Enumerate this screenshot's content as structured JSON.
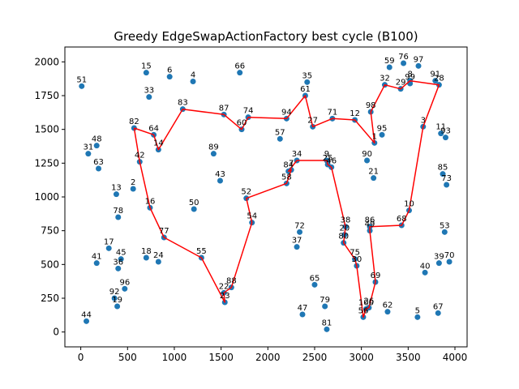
{
  "chart_data": {
    "type": "scatter",
    "title": "Greedy EdgeSwapActionFactory best cycle (B100)",
    "xlabel": "",
    "ylabel": "",
    "xlim": [
      -170,
      4130
    ],
    "ylim": [
      -110,
      2110
    ],
    "xticks": [
      0,
      500,
      1000,
      1500,
      2000,
      2500,
      3000,
      3500,
      4000
    ],
    "yticks": [
      0,
      250,
      500,
      750,
      1000,
      1250,
      1500,
      1750,
      2000
    ],
    "grid": false,
    "colors": {
      "points": "#1f77b4",
      "tour": "#ff0000"
    },
    "points": [
      {
        "id": "2",
        "x": 560,
        "y": 1060
      },
      {
        "id": "3",
        "x": 3660,
        "y": 1520
      },
      {
        "id": "4",
        "x": 1200,
        "y": 1855
      },
      {
        "id": "5",
        "x": 3600,
        "y": 110
      },
      {
        "id": "6",
        "x": 950,
        "y": 1890
      },
      {
        "id": "7",
        "x": 2250,
        "y": 1200
      },
      {
        "id": "8",
        "x": 3520,
        "y": 1860
      },
      {
        "id": "9",
        "x": 2630,
        "y": 1270
      },
      {
        "id": "10",
        "x": 3510,
        "y": 900
      },
      {
        "id": "11",
        "x": 3850,
        "y": 1470
      },
      {
        "id": "12",
        "x": 2930,
        "y": 1570
      },
      {
        "id": "13",
        "x": 380,
        "y": 1020
      },
      {
        "id": "14",
        "x": 830,
        "y": 1350
      },
      {
        "id": "15",
        "x": 700,
        "y": 1920
      },
      {
        "id": "16",
        "x": 740,
        "y": 920
      },
      {
        "id": "17",
        "x": 300,
        "y": 620
      },
      {
        "id": "18",
        "x": 700,
        "y": 550
      },
      {
        "id": "19",
        "x": 390,
        "y": 190
      },
      {
        "id": "20",
        "x": 2820,
        "y": 720
      },
      {
        "id": "21",
        "x": 3130,
        "y": 1140
      },
      {
        "id": "22",
        "x": 1530,
        "y": 290
      },
      {
        "id": "23",
        "x": 1540,
        "y": 220
      },
      {
        "id": "24",
        "x": 830,
        "y": 520
      },
      {
        "id": "25",
        "x": 2640,
        "y": 1240
      },
      {
        "id": "26",
        "x": 3080,
        "y": 180
      },
      {
        "id": "27",
        "x": 2480,
        "y": 1520
      },
      {
        "id": "28",
        "x": 3830,
        "y": 1830
      },
      {
        "id": "29",
        "x": 3420,
        "y": 1800
      },
      {
        "id": "30",
        "x": 2950,
        "y": 490
      },
      {
        "id": "31",
        "x": 80,
        "y": 1320
      },
      {
        "id": "32",
        "x": 3250,
        "y": 1830
      },
      {
        "id": "33",
        "x": 730,
        "y": 1740
      },
      {
        "id": "34",
        "x": 2310,
        "y": 1270
      },
      {
        "id": "35",
        "x": 2420,
        "y": 1850
      },
      {
        "id": "36",
        "x": 400,
        "y": 470
      },
      {
        "id": "37",
        "x": 2310,
        "y": 630
      },
      {
        "id": "38",
        "x": 2830,
        "y": 780
      },
      {
        "id": "39",
        "x": 3830,
        "y": 510
      },
      {
        "id": "40",
        "x": 3680,
        "y": 440
      },
      {
        "id": "41",
        "x": 170,
        "y": 510
      },
      {
        "id": "42",
        "x": 630,
        "y": 1260
      },
      {
        "id": "43",
        "x": 1490,
        "y": 1120
      },
      {
        "id": "44",
        "x": 60,
        "y": 80
      },
      {
        "id": "45",
        "x": 430,
        "y": 540
      },
      {
        "id": "46",
        "x": 2680,
        "y": 1220
      },
      {
        "id": "47",
        "x": 2370,
        "y": 130
      },
      {
        "id": "48",
        "x": 170,
        "y": 1380
      },
      {
        "id": "49",
        "x": 3090,
        "y": 750
      },
      {
        "id": "50",
        "x": 1210,
        "y": 910
      },
      {
        "id": "51",
        "x": 10,
        "y": 1820
      },
      {
        "id": "52",
        "x": 1770,
        "y": 990
      },
      {
        "id": "53",
        "x": 3890,
        "y": 740
      },
      {
        "id": "54",
        "x": 1830,
        "y": 810
      },
      {
        "id": "55",
        "x": 1290,
        "y": 550
      },
      {
        "id": "56",
        "x": 3020,
        "y": 110
      },
      {
        "id": "57",
        "x": 2130,
        "y": 1430
      },
      {
        "id": "58",
        "x": 2200,
        "y": 1100
      },
      {
        "id": "59",
        "x": 3300,
        "y": 1960
      },
      {
        "id": "60",
        "x": 1720,
        "y": 1500
      },
      {
        "id": "61",
        "x": 2400,
        "y": 1750
      },
      {
        "id": "62",
        "x": 3280,
        "y": 150
      },
      {
        "id": "63",
        "x": 190,
        "y": 1210
      },
      {
        "id": "64",
        "x": 780,
        "y": 1460
      },
      {
        "id": "65",
        "x": 2500,
        "y": 350
      },
      {
        "id": "66",
        "x": 1700,
        "y": 1920
      },
      {
        "id": "67",
        "x": 3820,
        "y": 140
      },
      {
        "id": "68",
        "x": 3430,
        "y": 790
      },
      {
        "id": "69",
        "x": 3150,
        "y": 370
      },
      {
        "id": "70",
        "x": 3940,
        "y": 520
      },
      {
        "id": "71",
        "x": 2690,
        "y": 1580
      },
      {
        "id": "72",
        "x": 2340,
        "y": 740
      },
      {
        "id": "73",
        "x": 3910,
        "y": 1090
      },
      {
        "id": "74",
        "x": 1790,
        "y": 1590
      },
      {
        "id": "75",
        "x": 2930,
        "y": 540
      },
      {
        "id": "76",
        "x": 3450,
        "y": 1990
      },
      {
        "id": "77",
        "x": 890,
        "y": 700
      },
      {
        "id": "78",
        "x": 400,
        "y": 850
      },
      {
        "id": "79",
        "x": 2610,
        "y": 190
      },
      {
        "id": "80",
        "x": 2810,
        "y": 660
      },
      {
        "id": "81",
        "x": 2630,
        "y": 20
      },
      {
        "id": "82",
        "x": 570,
        "y": 1510
      },
      {
        "id": "83",
        "x": 1090,
        "y": 1650
      },
      {
        "id": "84",
        "x": 2220,
        "y": 1190
      },
      {
        "id": "85",
        "x": 3870,
        "y": 1170
      },
      {
        "id": "86",
        "x": 3090,
        "y": 780
      },
      {
        "id": "87",
        "x": 1530,
        "y": 1610
      },
      {
        "id": "88",
        "x": 1610,
        "y": 330
      },
      {
        "id": "89",
        "x": 1420,
        "y": 1320
      },
      {
        "id": "90",
        "x": 3060,
        "y": 1270
      },
      {
        "id": "91",
        "x": 3790,
        "y": 1860
      },
      {
        "id": "92",
        "x": 360,
        "y": 250
      },
      {
        "id": "93",
        "x": 3900,
        "y": 1440
      },
      {
        "id": "94",
        "x": 2200,
        "y": 1580
      },
      {
        "id": "95",
        "x": 3220,
        "y": 1460
      },
      {
        "id": "96",
        "x": 470,
        "y": 320
      },
      {
        "id": "97",
        "x": 3610,
        "y": 1970
      },
      {
        "id": "98",
        "x": 3100,
        "y": 1630
      },
      {
        "id": "99",
        "x": 3520,
        "y": 1840
      },
      {
        "id": "100",
        "x": 3050,
        "y": 170
      },
      {
        "id": "1",
        "x": 3140,
        "y": 1400
      }
    ],
    "tour": [
      "82",
      "64",
      "14",
      "83",
      "87",
      "60",
      "74",
      "94",
      "61",
      "27",
      "71",
      "12",
      "1",
      "98",
      "32",
      "29",
      "8",
      "28",
      "3",
      "10",
      "68",
      "86",
      "49",
      "69",
      "26",
      "100",
      "56",
      "30",
      "75",
      "80",
      "20",
      "38",
      "46",
      "25",
      "9",
      "34",
      "84",
      "7",
      "58",
      "52",
      "54",
      "88",
      "22",
      "23",
      "55",
      "77",
      "16",
      "42",
      "82"
    ]
  }
}
